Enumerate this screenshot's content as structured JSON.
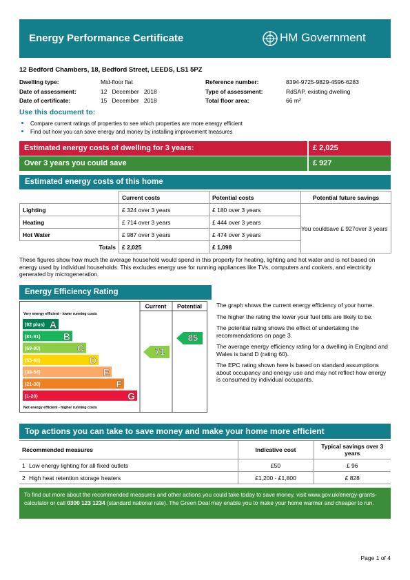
{
  "header": {
    "title": "Energy Performance Certificate",
    "logo": "HM Government"
  },
  "address": "12 Bedford Chambers, 18, Bedford Street, LEEDS, LS1 5PZ",
  "details_left": [
    {
      "label": "Dwelling type:",
      "value": "Mid-floor flat"
    },
    {
      "label": "Date of assessment:",
      "value": "12   December   2018"
    },
    {
      "label": "Date of certificate:",
      "value": "15   December   2018"
    }
  ],
  "details_right": [
    {
      "label": "Reference number:",
      "value": "8394-9725-9829-4596-6283"
    },
    {
      "label": "Type of assessment:",
      "value": "RdSAP, existing dwelling"
    },
    {
      "label": "Total floor area:",
      "value": "66 m²"
    }
  ],
  "use": {
    "title": "Use this document to:",
    "items": [
      "Compare current ratings of properties to see which properties are more energy efficient",
      "Find out how you can save energy and money by installing improvement measures"
    ]
  },
  "summary": [
    {
      "label": "Estimated energy costs of dwelling for 3 years:",
      "value": "£ 2,025"
    },
    {
      "label": "Over 3 years you could save",
      "value": "£ 927"
    }
  ],
  "costs": {
    "title": "Estimated energy costs of this home",
    "columns": [
      "Current costs",
      "Potential costs",
      "Potential future savings"
    ],
    "rows": [
      [
        "Lighting",
        "£ 324 over 3 years",
        "£ 180 over 3 years"
      ],
      [
        "Heating",
        "£ 714 over 3 years",
        "£ 444 over 3 years"
      ],
      [
        "Hot Water",
        "£ 987 over 3 years",
        "£ 474 over 3 years"
      ]
    ],
    "totals": [
      "Totals",
      "£ 2,025",
      "£ 1,098"
    ],
    "savings": [
      "You could",
      "save £ 927",
      "over 3 years"
    ],
    "note": "These figures show how much the average household would spend in this property for heating, lighting and hot water and is not based on energy used by individual households. This excludes energy use for running appliances like TVs, computers and cookers, and electricity generated by microgeneration."
  },
  "rating": {
    "title": "Energy Efficiency Rating",
    "columns": [
      "Current",
      "Potential"
    ],
    "top_note": "Very energy efficient - lower running costs",
    "bottom_note": "Not energy efficient - higher running costs",
    "bands": [
      {
        "range": "(92 plus)",
        "letter": "A",
        "color": "#008054"
      },
      {
        "range": "(81-91)",
        "letter": "B",
        "color": "#19b459"
      },
      {
        "range": "(69-80)",
        "letter": "C",
        "color": "#8dce46"
      },
      {
        "range": "(55-68)",
        "letter": "D",
        "color": "#ffd500"
      },
      {
        "range": "(39-54)",
        "letter": "E",
        "color": "#fcaa65"
      },
      {
        "range": "(21-38)",
        "letter": "F",
        "color": "#ef8023"
      },
      {
        "range": "(1-20)",
        "letter": "G",
        "color": "#e9153b"
      }
    ],
    "current": 71,
    "potential": 85,
    "paragraphs": [
      "The graph shows the current energy efficiency of your home.",
      "The higher the rating the lower your fuel bills are likely to be.",
      "The potential rating shows the effect of undertaking the recommendations on page 3.",
      "The average energy efficiency rating for a dwelling in England and Wales is band D (rating 60).",
      "The EPC rating shown here is based on standard assumptions about occupancy and energy use and may not reflect how energy is consumed by individual occupants."
    ]
  },
  "actions": {
    "title": "Top actions you can take to save money and make your home more efficient",
    "columns": [
      "Recommended measures",
      "Indicative cost",
      "Typical savings over 3 years"
    ],
    "rows": [
      [
        "1",
        "Low energy lighting for all fixed outlets",
        "£50",
        "£ 96"
      ],
      [
        "2",
        "High heat retention storage heaters",
        "£1,200 - £1,800",
        "£ 828"
      ]
    ]
  },
  "footer": {
    "before": "To find out more about the recommended measures and other actions you could take today to save money, visit www.gov.uk/energy-grants-calculator or call",
    "phone": "0300 123 1234",
    "after": "(standard national rate). The Green Deal may enable you to make your home warmer and cheaper to run."
  },
  "page": "Page 1 of 4"
}
